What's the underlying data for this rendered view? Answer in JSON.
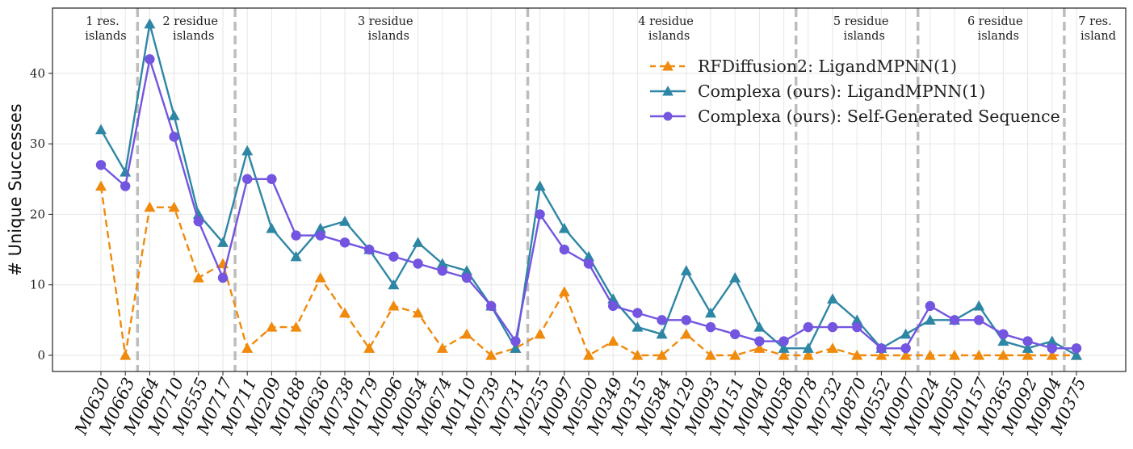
{
  "chart_data": {
    "type": "line",
    "title": "",
    "xlabel": "",
    "ylabel": "# Unique Successes",
    "ylim": [
      -2.3,
      49
    ],
    "yticks": [
      0,
      10,
      20,
      30,
      40
    ],
    "grid": true,
    "legend_position": "upper-right",
    "categories": [
      "M0630",
      "M0663",
      "M0664",
      "M0710",
      "M0555",
      "M0717",
      "M0711",
      "M0209",
      "M0188",
      "M0636",
      "M0738",
      "M0179",
      "M0096",
      "M0054",
      "M0674",
      "M0110",
      "M0739",
      "M0731",
      "M0255",
      "M0097",
      "M0500",
      "M0349",
      "M0315",
      "M0584",
      "M0129",
      "M0093",
      "M0151",
      "M0040",
      "M0058",
      "M0078",
      "M0732",
      "M0870",
      "M0552",
      "M0907",
      "M0024",
      "M0050",
      "M0157",
      "M0365",
      "M0092",
      "M0904",
      "M0375"
    ],
    "series": [
      {
        "name": "RFDiffusion2: LigandMPNN(1)",
        "color": "#ef8a0c",
        "line_style": "dashed",
        "marker": "triangle",
        "values": [
          24,
          0,
          21,
          21,
          11,
          13,
          1,
          4,
          4,
          11,
          6,
          1,
          7,
          6,
          1,
          3,
          0,
          1,
          3,
          9,
          0,
          2,
          0,
          0,
          3,
          0,
          0,
          1,
          0,
          0,
          1,
          0,
          0,
          0,
          0,
          0,
          0,
          0,
          0,
          0,
          0
        ]
      },
      {
        "name": "Complexa (ours): LigandMPNN(1)",
        "color": "#2e86a5",
        "line_style": "solid",
        "marker": "triangle",
        "values": [
          32,
          26,
          47,
          34,
          20,
          16,
          29,
          18,
          14,
          18,
          19,
          15,
          10,
          16,
          13,
          12,
          7,
          1,
          24,
          18,
          14,
          8,
          4,
          3,
          12,
          6,
          11,
          4,
          1,
          1,
          8,
          5,
          1,
          3,
          5,
          5,
          7,
          2,
          1,
          2,
          0
        ]
      },
      {
        "name": "Complexa (ours): Self-Generated Sequence",
        "color": "#7355e0",
        "line_style": "solid",
        "marker": "circle",
        "values": [
          27,
          24,
          42,
          31,
          19,
          11,
          25,
          25,
          17,
          17,
          16,
          15,
          14,
          13,
          12,
          11,
          7,
          2,
          20,
          15,
          13,
          7,
          6,
          5,
          5,
          4,
          3,
          2,
          2,
          4,
          4,
          4,
          1,
          1,
          7,
          5,
          5,
          3,
          2,
          1,
          1
        ]
      }
    ],
    "region_dividers_after_index": [
      1,
      5,
      17,
      28,
      33,
      39
    ],
    "regions": [
      {
        "label_line1": "1 res.",
        "label_line2": "islands",
        "start": 0,
        "end": 1
      },
      {
        "label_line1": "2 residue",
        "label_line2": "islands",
        "start": 2,
        "end": 5
      },
      {
        "label_line1": "3 residue",
        "label_line2": "islands",
        "start": 6,
        "end": 17
      },
      {
        "label_line1": "4 residue",
        "label_line2": "islands",
        "start": 18,
        "end": 28
      },
      {
        "label_line1": "5 residue",
        "label_line2": "islands",
        "start": 29,
        "end": 33
      },
      {
        "label_line1": "6 residue",
        "label_line2": "islands",
        "start": 34,
        "end": 39
      },
      {
        "label_line1": "7 res.",
        "label_line2": "island",
        "start": 40,
        "end": 40
      }
    ]
  }
}
